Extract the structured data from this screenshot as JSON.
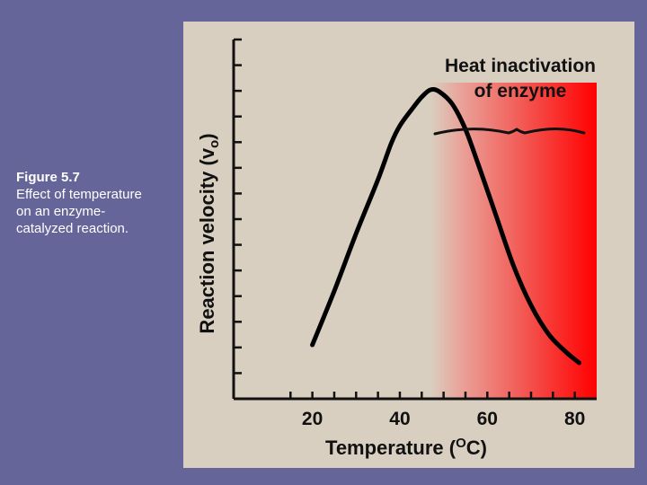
{
  "caption": {
    "title": "Figure 5.7",
    "lines": [
      "Effect of temperature",
      "on an enzyme-",
      "catalyzed reaction."
    ]
  },
  "chart_data": {
    "type": "line",
    "xlabel": "Temperature (",
    "xlabel_sup": "O",
    "xlabel_end": "C)",
    "ylabel": "Reaction velocity (v",
    "ylabel_sub": "o",
    "ylabel_end": ")",
    "annotation": [
      "Heat inactivation",
      "of enzyme"
    ],
    "x_ticks": [
      20,
      40,
      60,
      80
    ],
    "xlim": [
      2,
      85
    ],
    "ylim": [
      0,
      1
    ],
    "shaded_region": {
      "x_start": 47,
      "x_end": 85,
      "y_top": 0.88,
      "color_from": "#d8cfc0",
      "color_to": "#ff0000"
    },
    "series": [
      {
        "x": [
          20,
          25,
          30,
          35,
          38,
          40,
          43,
          45,
          47,
          49,
          52,
          55,
          58,
          62,
          66,
          70,
          74,
          78,
          81
        ],
        "y": [
          0.15,
          0.3,
          0.46,
          0.61,
          0.71,
          0.76,
          0.81,
          0.84,
          0.86,
          0.855,
          0.82,
          0.75,
          0.65,
          0.51,
          0.37,
          0.26,
          0.18,
          0.13,
          0.1
        ],
        "color": "#000000"
      }
    ]
  }
}
